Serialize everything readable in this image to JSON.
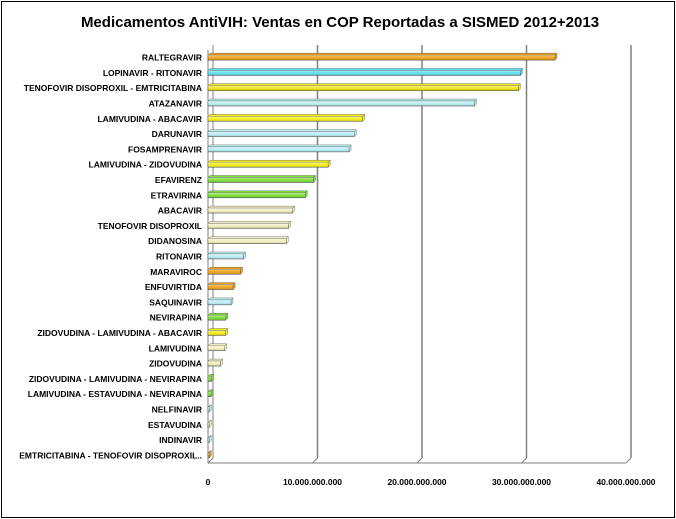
{
  "chart_data": {
    "type": "bar",
    "orientation": "horizontal",
    "title": "Medicamentos AntiVIH: Ventas en COP Reportadas a SISMED 2012+2013",
    "xlabel": "",
    "ylabel": "",
    "xlim": [
      0,
      40000000000
    ],
    "x_ticks": [
      "0",
      "10.000.000.000",
      "20.000.000.000",
      "30.000.000.000",
      "40.000.000.000"
    ],
    "grid": "vertical",
    "legend": "none",
    "categories": [
      "RALTEGRAVIR",
      "LOPINAVIR - RITONAVIR",
      "TENOFOVIR DISOPROXIL - EMTRICITABINA",
      "ATAZANAVIR",
      "LAMIVUDINA - ABACAVIR",
      "DARUNAVIR",
      "FOSAMPRENAVIR",
      "LAMIVUDINA - ZIDOVUDINA",
      "EFAVIRENZ",
      "ETRAVIRINA",
      "ABACAVIR",
      "TENOFOVIR DISOPROXIL",
      "DIDANOSINA",
      "RITONAVIR",
      "MARAVIROC",
      "ENFUVIRTIDA",
      "SAQUINAVIR",
      "NEVIRAPINA",
      "ZIDOVUDINA - LAMIVUDINA - ABACAVIR",
      "LAMIVUDINA",
      "ZIDOVUDINA",
      "ZIDOVUDINA - LAMIVUDINA - NEVIRAPINA",
      "LAMIVUDINA - ESTAVUDINA - NEVIRAPINA",
      "NELFINAVIR",
      "ESTAVUDINA",
      "INDINAVIR",
      "EMTRICITABINA - TENOFOVIR DISOPROXIL.."
    ],
    "values": [
      33200000000,
      29900000000,
      29700000000,
      25500000000,
      14800000000,
      14000000000,
      13500000000,
      11500000000,
      10100000000,
      9300000000,
      8100000000,
      7700000000,
      7500000000,
      3400000000,
      3100000000,
      2400000000,
      2200000000,
      1700000000,
      1700000000,
      1600000000,
      1200000000,
      350000000,
      300000000,
      120000000,
      100000000,
      80000000,
      60000000
    ],
    "bar_colors": [
      "#f2a31a",
      "#5fe0ee",
      "#f4e41c",
      "#b9f0f6",
      "#f4f01c",
      "#b9f0f6",
      "#b9f0f6",
      "#f4f01c",
      "#7ee03a",
      "#7ee03a",
      "#f4f0c0",
      "#f4f0c0",
      "#f4f0c0",
      "#b9f0f6",
      "#f2a31a",
      "#f2a31a",
      "#b9f0f6",
      "#7ee03a",
      "#f4f01c",
      "#f4f0c0",
      "#f4f0c0",
      "#7ee03a",
      "#7ee03a",
      "#b9f0f6",
      "#f4f0c0",
      "#b9f0f6",
      "#f2a31a"
    ],
    "gridline_color": "#808080"
  }
}
